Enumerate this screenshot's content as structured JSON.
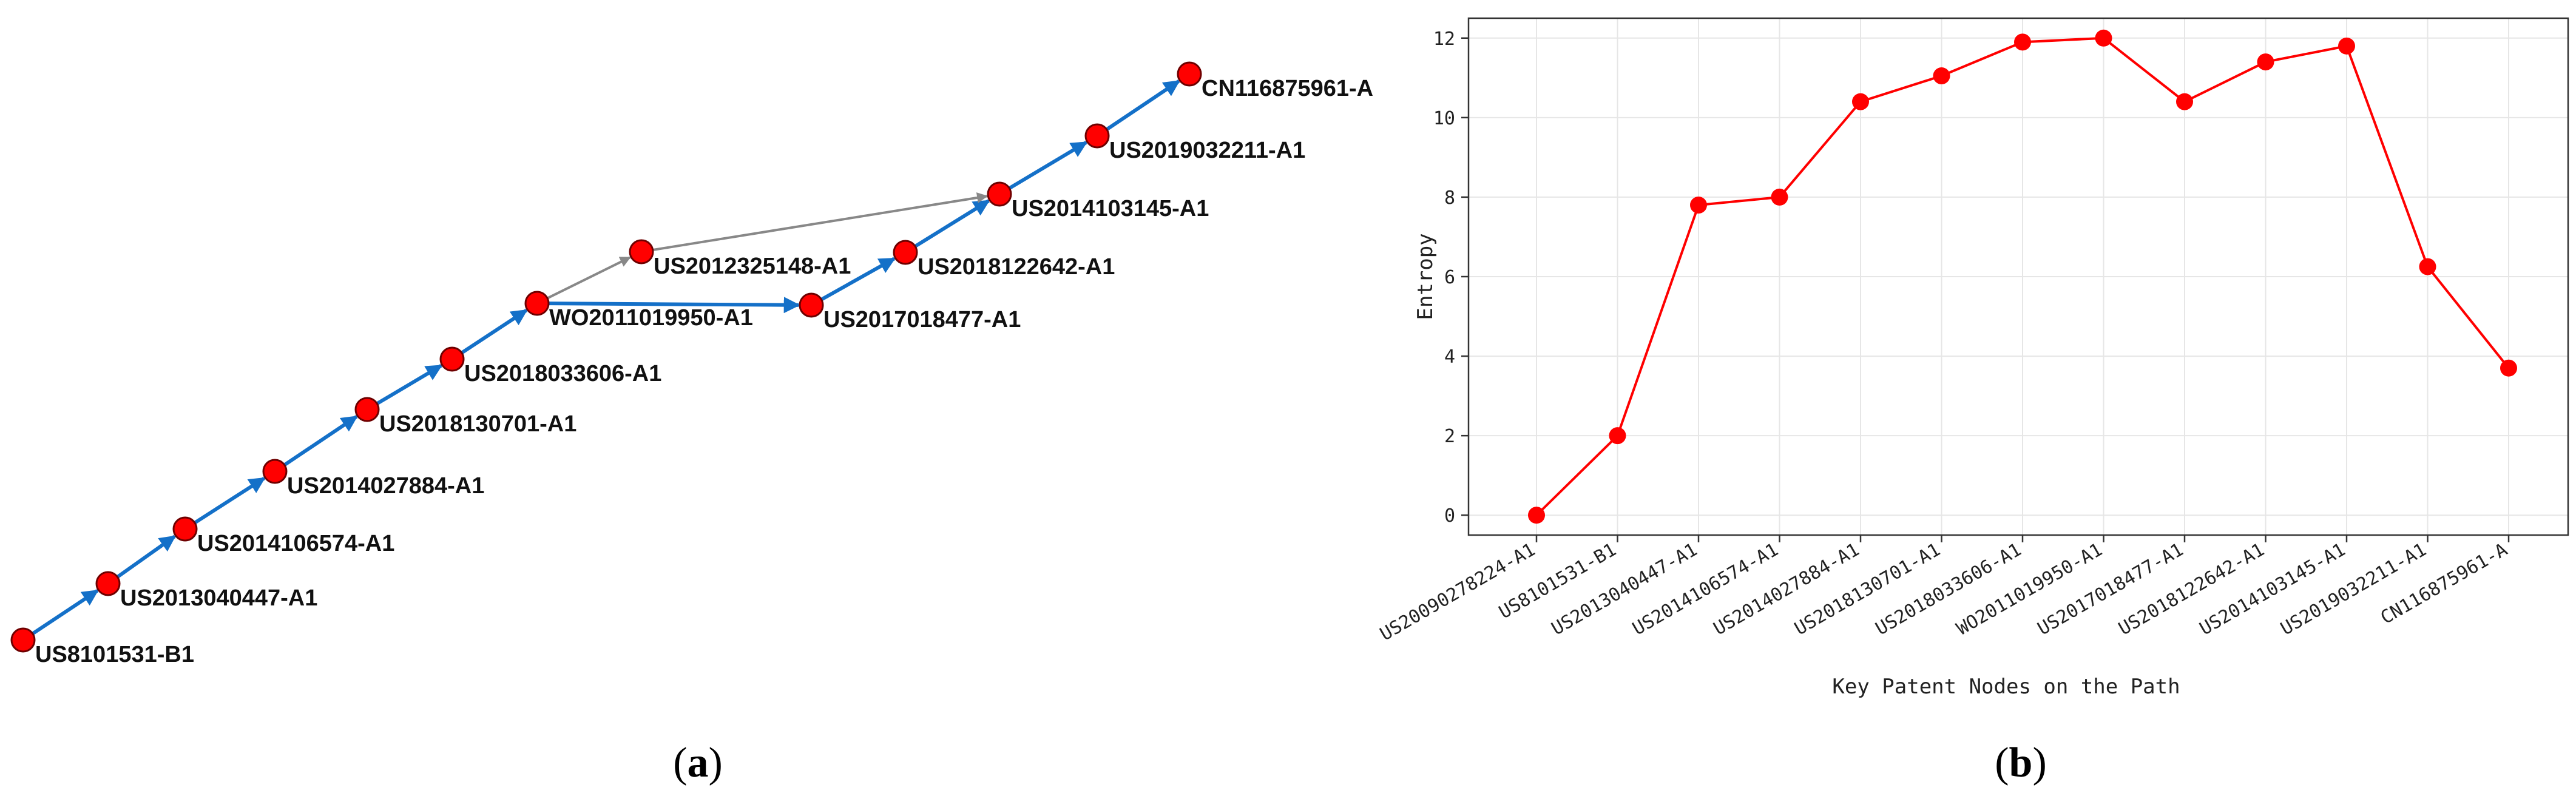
{
  "colors": {
    "node_fill": "#ff0000",
    "node_stroke": "#6e0000",
    "main_edge": "#1470c8",
    "side_edge": "#888888",
    "line_series": "#ff0000",
    "grid": "#e6e6e6",
    "axis_frame": "#333333"
  },
  "panel_a": {
    "caption_letter": "a",
    "network": {
      "nodes": [
        {
          "id": "US8101531-B1",
          "label": "US8101531-B1"
        },
        {
          "id": "US2013040447-A1",
          "label": "US2013040447-A1"
        },
        {
          "id": "US2014106574-A1",
          "label": "US2014106574-A1"
        },
        {
          "id": "US2014027884-A1",
          "label": "US2014027884-A1"
        },
        {
          "id": "US2018130701-A1",
          "label": "US2018130701-A1"
        },
        {
          "id": "US2018033606-A1",
          "label": "US2018033606-A1"
        },
        {
          "id": "WO2011019950-A1",
          "label": "WO2011019950-A1"
        },
        {
          "id": "US2012325148-A1",
          "label": "US2012325148-A1"
        },
        {
          "id": "US2017018477-A1",
          "label": "US2017018477-A1"
        },
        {
          "id": "US2018122642-A1",
          "label": "US2018122642-A1"
        },
        {
          "id": "US2014103145-A1",
          "label": "US2014103145-A1"
        },
        {
          "id": "US2019032211-A1",
          "label": "US2019032211-A1"
        },
        {
          "id": "CN116875961-A",
          "label": "CN116875961-A"
        }
      ],
      "edges": [
        {
          "from": "US8101531-B1",
          "to": "US2013040447-A1",
          "kind": "main"
        },
        {
          "from": "US2013040447-A1",
          "to": "US2014106574-A1",
          "kind": "main"
        },
        {
          "from": "US2014106574-A1",
          "to": "US2014027884-A1",
          "kind": "main"
        },
        {
          "from": "US2014027884-A1",
          "to": "US2018130701-A1",
          "kind": "main"
        },
        {
          "from": "US2018130701-A1",
          "to": "US2018033606-A1",
          "kind": "main"
        },
        {
          "from": "US2018033606-A1",
          "to": "WO2011019950-A1",
          "kind": "main"
        },
        {
          "from": "WO2011019950-A1",
          "to": "US2017018477-A1",
          "kind": "main"
        },
        {
          "from": "US2017018477-A1",
          "to": "US2018122642-A1",
          "kind": "main"
        },
        {
          "from": "US2018122642-A1",
          "to": "US2014103145-A1",
          "kind": "main"
        },
        {
          "from": "US2014103145-A1",
          "to": "US2019032211-A1",
          "kind": "main"
        },
        {
          "from": "US2019032211-A1",
          "to": "CN116875961-A",
          "kind": "main"
        },
        {
          "from": "WO2011019950-A1",
          "to": "US2012325148-A1",
          "kind": "side"
        },
        {
          "from": "US2012325148-A1",
          "to": "US2014103145-A1",
          "kind": "side"
        }
      ]
    }
  },
  "panel_b": {
    "caption_letter": "b",
    "chart_data": {
      "type": "line",
      "xlabel": "Key Patent Nodes on the Path",
      "ylabel": "Entropy",
      "ylim": [
        -0.5,
        12.5
      ],
      "yticks": [
        0,
        2,
        4,
        6,
        8,
        10,
        12
      ],
      "grid": true,
      "categories": [
        "US20090278224-A1",
        "US8101531-B1",
        "US2013040447-A1",
        "US2014106574-A1",
        "US2014027884-A1",
        "US2018130701-A1",
        "US2018033606-A1",
        "WO2011019950-A1",
        "US2017018477-A1",
        "US2018122642-A1",
        "US2014103145-A1",
        "US2019032211-A1",
        "CN116875961-A"
      ],
      "series": [
        {
          "values": [
            0.0,
            2.0,
            7.8,
            8.0,
            10.4,
            11.05,
            11.9,
            12.0,
            10.4,
            11.4,
            11.8,
            6.25,
            3.7
          ]
        }
      ]
    }
  }
}
